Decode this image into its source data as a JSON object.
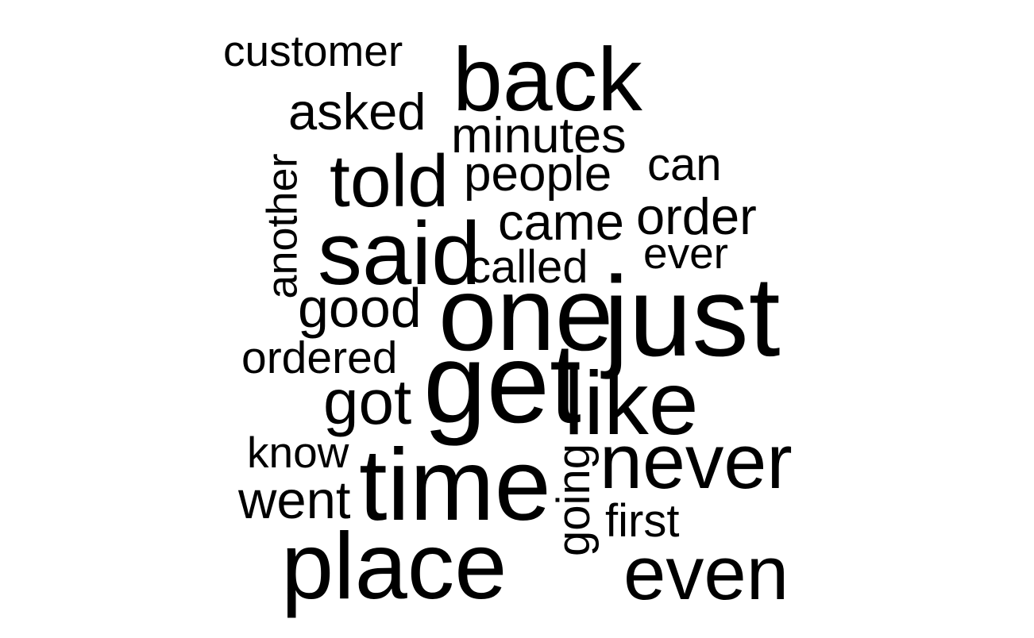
{
  "word_cloud": {
    "text_color": "#000000",
    "background_color": "#ffffff",
    "words": [
      {
        "text": "back",
        "orientation": "horizontal"
      },
      {
        "text": "customer",
        "orientation": "horizontal"
      },
      {
        "text": "asked",
        "orientation": "horizontal"
      },
      {
        "text": "minutes",
        "orientation": "horizontal"
      },
      {
        "text": "told",
        "orientation": "horizontal"
      },
      {
        "text": "people",
        "orientation": "horizontal"
      },
      {
        "text": "can",
        "orientation": "horizontal"
      },
      {
        "text": "another",
        "orientation": "vertical"
      },
      {
        "text": "came",
        "orientation": "horizontal"
      },
      {
        "text": "order",
        "orientation": "horizontal"
      },
      {
        "text": "said",
        "orientation": "horizontal"
      },
      {
        "text": "called",
        "orientation": "horizontal"
      },
      {
        "text": "ever",
        "orientation": "horizontal"
      },
      {
        "text": "good",
        "orientation": "horizontal"
      },
      {
        "text": "one",
        "orientation": "horizontal"
      },
      {
        "text": "just",
        "orientation": "horizontal"
      },
      {
        "text": "ordered",
        "orientation": "horizontal"
      },
      {
        "text": "get",
        "orientation": "horizontal"
      },
      {
        "text": "got",
        "orientation": "horizontal"
      },
      {
        "text": "like",
        "orientation": "horizontal"
      },
      {
        "text": "know",
        "orientation": "horizontal"
      },
      {
        "text": "never",
        "orientation": "horizontal"
      },
      {
        "text": "going",
        "orientation": "vertical"
      },
      {
        "text": "went",
        "orientation": "horizontal"
      },
      {
        "text": "time",
        "orientation": "horizontal"
      },
      {
        "text": "first",
        "orientation": "horizontal"
      },
      {
        "text": "place",
        "orientation": "horizontal"
      },
      {
        "text": "even",
        "orientation": "horizontal"
      }
    ]
  }
}
